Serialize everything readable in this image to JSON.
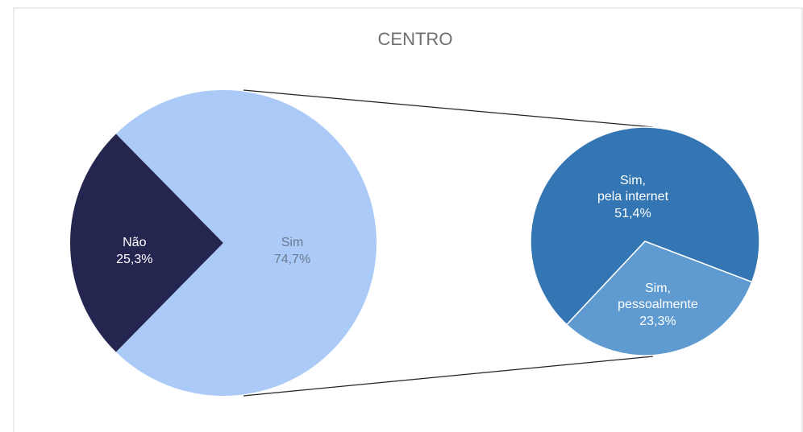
{
  "chart_data": {
    "type": "pie-of-pie",
    "title": "CENTRO",
    "categories": [
      "Não",
      "Sim"
    ],
    "values": [
      25.3,
      74.7
    ],
    "value_labels": [
      "25,3%",
      "74,7%"
    ],
    "colors": [
      "#25264f",
      "#abcaf8"
    ],
    "secondary": {
      "categories": [
        "Sim, pela internet",
        "Sim, pessoalmente"
      ],
      "values": [
        51.4,
        23.3
      ],
      "value_labels": [
        "51,4%",
        "23,3%"
      ],
      "colors": [
        "#3476b3",
        "#5f9bd1"
      ]
    }
  }
}
